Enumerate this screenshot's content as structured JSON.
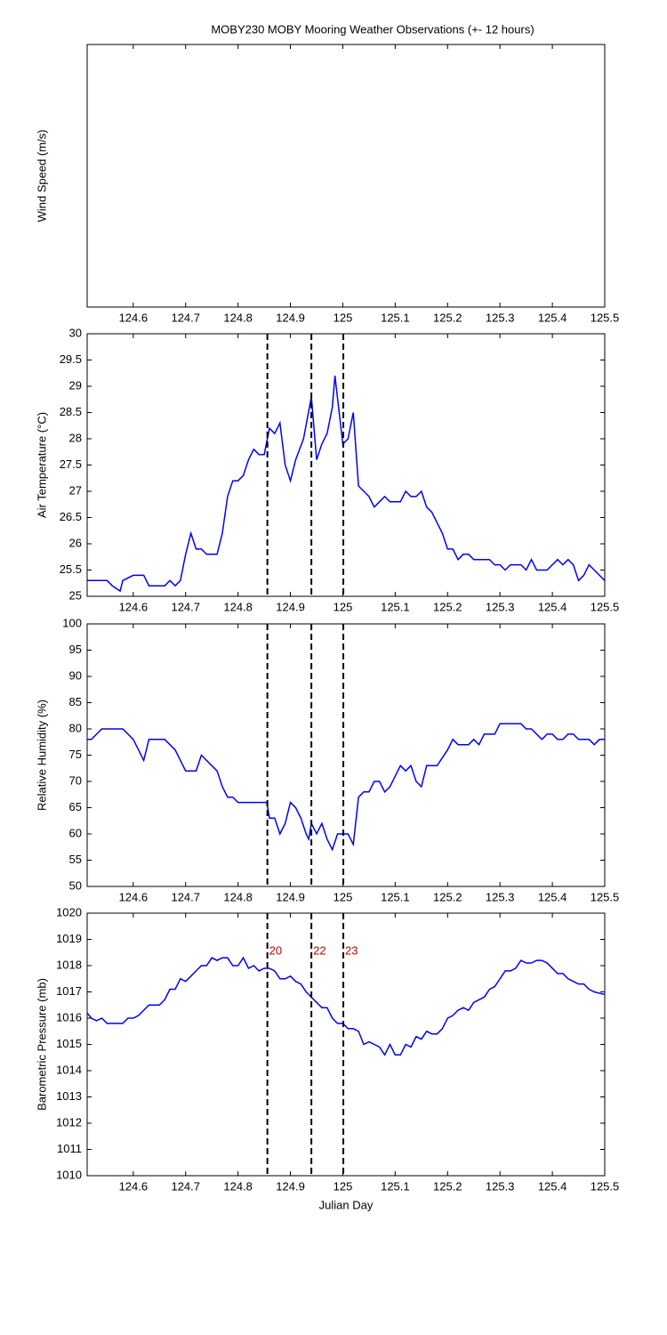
{
  "chart_data": [
    {
      "type": "line",
      "title": "MOBY230 MOBY Mooring Weather Observations (+- 12 hours)",
      "ylabel": "Wind Speed (m/s)",
      "xlim": [
        124.512,
        125.5
      ],
      "xticks": [
        124.6,
        124.7,
        124.8,
        124.9,
        125,
        125.1,
        125.2,
        125.3,
        125.4,
        125.5
      ]
    },
    {
      "type": "line",
      "ylabel": "Air Temperature (°C)",
      "xlim": [
        124.512,
        125.5
      ],
      "xticks": [
        124.6,
        124.7,
        124.8,
        124.9,
        125,
        125.1,
        125.2,
        125.3,
        125.4,
        125.5
      ],
      "ylim": [
        25,
        30
      ],
      "yticks": [
        25,
        25.5,
        26,
        26.5,
        27,
        27.5,
        28,
        28.5,
        29,
        29.5,
        30
      ],
      "vlines": [
        124.856,
        124.94,
        125.001
      ],
      "x": [
        124.512,
        124.55,
        124.56,
        124.575,
        124.58,
        124.6,
        124.62,
        124.63,
        124.66,
        124.67,
        124.68,
        124.69,
        124.7,
        124.71,
        124.72,
        124.73,
        124.74,
        124.76,
        124.77,
        124.78,
        124.79,
        124.8,
        124.81,
        124.82,
        124.83,
        124.84,
        124.85,
        124.86,
        124.87,
        124.88,
        124.89,
        124.9,
        124.91,
        124.925,
        124.94,
        124.95,
        124.96,
        124.97,
        124.98,
        124.985,
        125.0,
        125.01,
        125.02,
        125.03,
        125.04,
        125.05,
        125.06,
        125.07,
        125.08,
        125.09,
        125.11,
        125.12,
        125.13,
        125.14,
        125.15,
        125.16,
        125.17,
        125.18,
        125.19,
        125.2,
        125.21,
        125.22,
        125.23,
        125.24,
        125.25,
        125.28,
        125.29,
        125.3,
        125.31,
        125.32,
        125.34,
        125.35,
        125.36,
        125.37,
        125.39,
        125.4,
        125.41,
        125.42,
        125.43,
        125.44,
        125.45,
        125.46,
        125.47,
        125.48,
        125.5
      ],
      "series": [
        {
          "color": "#0000ff",
          "values": [
            25.3,
            25.3,
            25.2,
            25.1,
            25.3,
            25.4,
            25.4,
            25.2,
            25.2,
            25.3,
            25.2,
            25.3,
            25.8,
            26.2,
            25.9,
            25.9,
            25.8,
            25.8,
            26.2,
            26.9,
            27.2,
            27.2,
            27.3,
            27.6,
            27.8,
            27.7,
            27.7,
            28.2,
            28.1,
            28.3,
            27.5,
            27.2,
            27.6,
            28.0,
            28.8,
            27.6,
            27.9,
            28.1,
            28.6,
            29.2,
            27.9,
            28.0,
            28.5,
            27.1,
            27.0,
            26.9,
            26.7,
            26.8,
            26.9,
            26.8,
            26.8,
            27.0,
            26.9,
            26.9,
            27.0,
            26.7,
            26.6,
            26.4,
            26.2,
            25.9,
            25.9,
            25.7,
            25.8,
            25.8,
            25.7,
            25.7,
            25.6,
            25.6,
            25.5,
            25.6,
            25.6,
            25.5,
            25.7,
            25.5,
            25.5,
            25.6,
            25.7,
            25.6,
            25.7,
            25.6,
            25.3,
            25.4,
            25.6,
            25.5,
            25.3
          ]
        }
      ]
    },
    {
      "type": "line",
      "ylabel": "Relative Humidity (%)",
      "xlim": [
        124.512,
        125.5
      ],
      "xticks": [
        124.6,
        124.7,
        124.8,
        124.9,
        125,
        125.1,
        125.2,
        125.3,
        125.4,
        125.5
      ],
      "ylim": [
        50,
        100
      ],
      "yticks": [
        50,
        55,
        60,
        65,
        70,
        75,
        80,
        85,
        90,
        95,
        100
      ],
      "vlines": [
        124.856,
        124.94,
        125.001
      ],
      "x": [
        124.512,
        124.52,
        124.53,
        124.54,
        124.56,
        124.58,
        124.6,
        124.62,
        124.63,
        124.66,
        124.68,
        124.7,
        124.72,
        124.73,
        124.75,
        124.76,
        124.77,
        124.78,
        124.79,
        124.8,
        124.84,
        124.855,
        124.86,
        124.87,
        124.88,
        124.89,
        124.9,
        124.91,
        124.92,
        124.93,
        124.935,
        124.94,
        124.95,
        124.96,
        124.97,
        124.98,
        124.99,
        125.0,
        125.01,
        125.02,
        125.03,
        125.04,
        125.05,
        125.06,
        125.07,
        125.08,
        125.09,
        125.1,
        125.11,
        125.12,
        125.13,
        125.14,
        125.15,
        125.16,
        125.18,
        125.2,
        125.21,
        125.22,
        125.24,
        125.25,
        125.26,
        125.27,
        125.29,
        125.3,
        125.34,
        125.35,
        125.36,
        125.38,
        125.39,
        125.4,
        125.41,
        125.42,
        125.43,
        125.44,
        125.45,
        125.47,
        125.48,
        125.49,
        125.5
      ],
      "series": [
        {
          "color": "#0000ff",
          "values": [
            78,
            78,
            79,
            80,
            80,
            80,
            78,
            74,
            78,
            78,
            76,
            72,
            72,
            75,
            73,
            72,
            69,
            67,
            67,
            66,
            66,
            66,
            63,
            63,
            60,
            62,
            66,
            65,
            63,
            60,
            59,
            62,
            60,
            62,
            59,
            57,
            60,
            60,
            60,
            58,
            67,
            68,
            68,
            70,
            70,
            68,
            69,
            71,
            73,
            72,
            73,
            70,
            69,
            73,
            73,
            76,
            78,
            77,
            77,
            78,
            77,
            79,
            79,
            81,
            81,
            80,
            80,
            78,
            79,
            79,
            78,
            78,
            79,
            79,
            78,
            78,
            77,
            78,
            78
          ]
        }
      ]
    },
    {
      "type": "line",
      "ylabel": "Barometric Pressure (mb)",
      "xlabel": "Julian Day",
      "xlim": [
        124.512,
        125.5
      ],
      "xticks": [
        124.6,
        124.7,
        124.8,
        124.9,
        125,
        125.1,
        125.2,
        125.3,
        125.4,
        125.5
      ],
      "ylim": [
        1010,
        1020
      ],
      "yticks": [
        1010,
        1011,
        1012,
        1013,
        1014,
        1015,
        1016,
        1017,
        1018,
        1019,
        1020
      ],
      "vlines": [
        {
          "value": 124.856,
          "label": "20"
        },
        {
          "value": 124.94,
          "label": "22"
        },
        {
          "value": 125.001,
          "label": "23"
        }
      ],
      "vline_color": "#c00000",
      "x": [
        124.512,
        124.52,
        124.53,
        124.54,
        124.55,
        124.58,
        124.59,
        124.6,
        124.61,
        124.63,
        124.65,
        124.66,
        124.67,
        124.68,
        124.69,
        124.7,
        124.71,
        124.72,
        124.73,
        124.74,
        124.75,
        124.76,
        124.77,
        124.78,
        124.79,
        124.8,
        124.81,
        124.82,
        124.83,
        124.84,
        124.85,
        124.86,
        124.87,
        124.88,
        124.89,
        124.9,
        124.91,
        124.92,
        124.93,
        124.94,
        124.95,
        124.96,
        124.97,
        124.98,
        124.99,
        125.0,
        125.01,
        125.02,
        125.03,
        125.04,
        125.05,
        125.06,
        125.07,
        125.08,
        125.09,
        125.1,
        125.11,
        125.12,
        125.13,
        125.14,
        125.15,
        125.16,
        125.17,
        125.18,
        125.19,
        125.2,
        125.21,
        125.22,
        125.23,
        125.24,
        125.25,
        125.26,
        125.27,
        125.28,
        125.29,
        125.3,
        125.31,
        125.32,
        125.33,
        125.34,
        125.35,
        125.36,
        125.37,
        125.38,
        125.39,
        125.4,
        125.41,
        125.42,
        125.43,
        125.44,
        125.45,
        125.46,
        125.47,
        125.48,
        125.5
      ],
      "series": [
        {
          "color": "#0000ff",
          "values": [
            1016.2,
            1016.0,
            1015.9,
            1016.0,
            1015.8,
            1015.8,
            1016.0,
            1016.0,
            1016.1,
            1016.5,
            1016.5,
            1016.7,
            1017.1,
            1017.1,
            1017.5,
            1017.4,
            1017.6,
            1017.8,
            1018.0,
            1018.0,
            1018.3,
            1018.2,
            1018.3,
            1018.3,
            1018.0,
            1018.0,
            1018.3,
            1017.9,
            1018.0,
            1017.8,
            1017.9,
            1017.9,
            1017.8,
            1017.5,
            1017.5,
            1017.6,
            1017.4,
            1017.3,
            1017.0,
            1016.8,
            1016.6,
            1016.4,
            1016.4,
            1016.0,
            1015.8,
            1015.8,
            1015.6,
            1015.6,
            1015.5,
            1015.0,
            1015.1,
            1015.0,
            1014.9,
            1014.6,
            1015.0,
            1014.6,
            1014.6,
            1015.0,
            1014.9,
            1015.3,
            1015.2,
            1015.5,
            1015.4,
            1015.4,
            1015.6,
            1016.0,
            1016.1,
            1016.3,
            1016.4,
            1016.3,
            1016.6,
            1016.7,
            1016.8,
            1017.1,
            1017.2,
            1017.5,
            1017.8,
            1017.8,
            1017.9,
            1018.2,
            1018.1,
            1018.1,
            1018.2,
            1018.2,
            1018.1,
            1017.9,
            1017.7,
            1017.7,
            1017.5,
            1017.4,
            1017.3,
            1017.3,
            1017.1,
            1017.0,
            1016.9
          ]
        }
      ]
    }
  ]
}
